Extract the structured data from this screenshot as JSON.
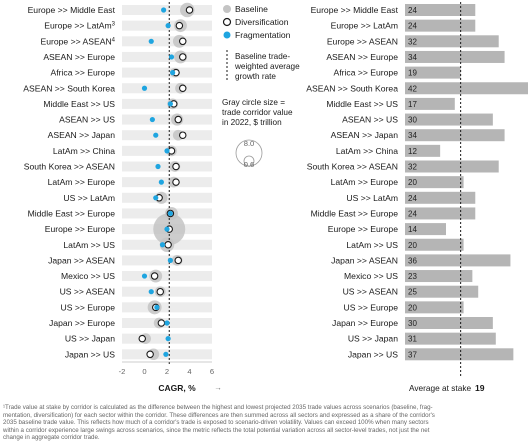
{
  "legend": {
    "baseline": "Baseline",
    "diversification": "Diversification",
    "fragmentation": "Fragmentation",
    "growth_note": [
      "Baseline trade-",
      "weighted average",
      "growth rate"
    ],
    "size_note": [
      "Gray circle size =",
      "trade corridor value",
      "in 2022, $ trillion"
    ],
    "size_values": [
      "8.0",
      "0.6"
    ]
  },
  "colors": {
    "baseline": "#c4c4c4",
    "fragmentation": "#1fa5e0",
    "bar": "#b5b5b5",
    "stripe": "#ececec"
  },
  "chart_data": [
    {
      "type": "scatter",
      "xlabel": "CAGR, %",
      "xlim": [
        -2,
        6
      ],
      "xticks": [
        "-2",
        "0",
        "2",
        "4",
        "6"
      ],
      "average_line": 2.2,
      "categories": [
        "Europe >> Middle East",
        "Europe >> LatAm",
        "Europe >> ASEAN",
        "ASEAN >> Europe",
        "Africa >> Europe",
        "ASEAN >> South Korea",
        "Middle East >> US",
        "ASEAN >> US",
        "ASEAN >> Japan",
        "LatAm >> China",
        "South Korea >> ASEAN",
        "LatAm >> Europe",
        "US >> LatAm",
        "Middle East >> Europe",
        "Europe >> Europe",
        "LatAm >> US",
        "Japan >> ASEAN",
        "Mexico >> US",
        "US >> ASEAN",
        "US >> Europe",
        "Japan >> Europe",
        "US >> Japan",
        "Japan >> US"
      ],
      "superscripts": [
        "",
        "3",
        "4",
        "",
        "",
        "",
        "",
        "",
        "",
        "",
        "",
        "",
        "",
        "",
        "",
        "",
        "",
        "",
        "",
        "",
        "",
        "",
        ""
      ],
      "series": [
        {
          "name": "Baseline",
          "values": [
            3.8,
            3.2,
            3.1,
            3.2,
            2.7,
            3.2,
            2.5,
            2.9,
            3.0,
            2.4,
            2.7,
            2.6,
            1.5,
            2.4,
            2.2,
            2.0,
            2.9,
            1.0,
            1.4,
            0.9,
            1.3,
            0.1,
            0.8
          ]
        },
        {
          "name": "Diversification",
          "values": [
            4.0,
            3.1,
            3.4,
            3.4,
            2.8,
            3.4,
            2.6,
            3.0,
            3.4,
            2.4,
            2.8,
            2.8,
            1.3,
            2.3,
            2.2,
            2.1,
            3.0,
            0.9,
            1.4,
            1.0,
            1.5,
            -0.2,
            0.5
          ]
        },
        {
          "name": "Fragmentation",
          "values": [
            1.7,
            2.1,
            0.6,
            2.4,
            2.5,
            0.0,
            2.3,
            0.7,
            1.0,
            2.0,
            1.2,
            1.5,
            1.0,
            2.3,
            2.0,
            1.6,
            2.3,
            0.0,
            0.6,
            1.1,
            2.0,
            2.1,
            1.9
          ]
        }
      ],
      "sizes": [
        0.9,
        0.6,
        0.6,
        0.6,
        0.2,
        0.3,
        0.3,
        0.5,
        0.3,
        0.3,
        0.3,
        0.3,
        0.5,
        0.6,
        8.0,
        0.9,
        0.3,
        0.6,
        0.3,
        0.8,
        0.3,
        0.3,
        0.4
      ]
    },
    {
      "type": "bar",
      "categories": [
        "Europe >> Middle East",
        "Europe >> LatAm",
        "Europe >> ASEAN",
        "ASEAN >> Europe",
        "Africa >> Europe",
        "ASEAN >> South Korea",
        "Middle East >> US",
        "ASEAN >> US",
        "ASEAN >> Japan",
        "LatAm >> China",
        "South Korea >> ASEAN",
        "LatAm >> Europe",
        "US >> LatAm",
        "Middle East >> Europe",
        "Europe >> Europe",
        "LatAm >> US",
        "Japan >> ASEAN",
        "Mexico >> US",
        "US >> ASEAN",
        "US >> Europe",
        "Japan >> Europe",
        "US >> Japan",
        "Japan >> US"
      ],
      "values": [
        24,
        24,
        32,
        34,
        19,
        42,
        17,
        30,
        34,
        12,
        32,
        20,
        24,
        24,
        14,
        20,
        36,
        23,
        25,
        20,
        30,
        31,
        37
      ],
      "labels": [
        "24",
        "24",
        "32",
        "34",
        "19",
        "42",
        "17",
        "30",
        "34",
        "12",
        "32",
        "20",
        "24",
        "24",
        "14",
        "20",
        "36",
        "23",
        "25",
        "20",
        "30",
        "31",
        "37"
      ],
      "xlim": [
        0,
        42
      ],
      "average": 19,
      "average_label": "Average at stake",
      "average_value": "19"
    }
  ],
  "footnote": [
    "¹Trade value at stake by corridor is calculated as the difference between the highest and lowest projected 2035 trade values across scenarios (baseline, frag-",
    "mentation, diversification) for each sector within the corridor. These differences are then summed across all sectors and expressed as a share of the corridor's",
    "2035 baseline trade value. This reflects how much of a corridor's trade is exposed to scenario-driven volatility. Values can exceed 100% when many sectors",
    "within a corridor experience large swings across scenarios, since the metric reflects the total potential variation across all sector-level trades, not just the net",
    "change in aggregate corridor trade."
  ]
}
